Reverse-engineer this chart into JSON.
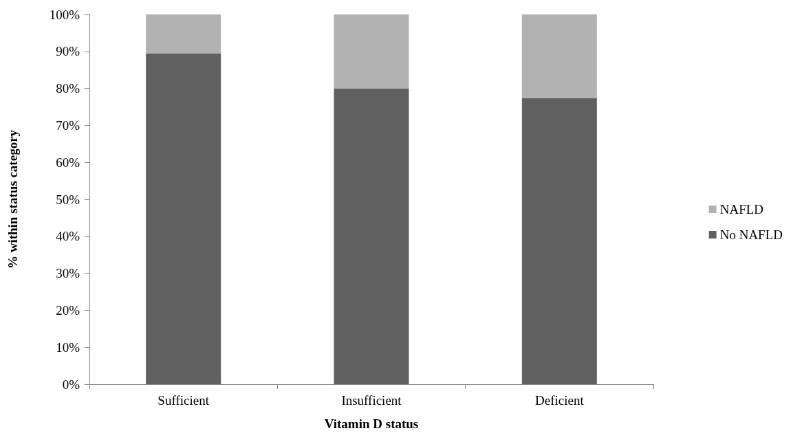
{
  "chart_data": {
    "type": "bar",
    "stacked": true,
    "xlabel": "Vitamin D status",
    "ylabel": "% within status category",
    "categories": [
      "Sufficient",
      "Insufficient",
      "Deficient"
    ],
    "series": [
      {
        "name": "No NAFLD",
        "color": "#606060",
        "values": [
          89.5,
          80,
          77.4
        ]
      },
      {
        "name": "NAFLD",
        "color": "#b2b2b2",
        "values": [
          10.5,
          20,
          22.6
        ]
      }
    ],
    "ylim": [
      0,
      100
    ],
    "yticks": [
      {
        "value": 0,
        "label": "0%"
      },
      {
        "value": 10,
        "label": "10%"
      },
      {
        "value": 20,
        "label": "20%"
      },
      {
        "value": 30,
        "label": "30%"
      },
      {
        "value": 40,
        "label": "40%"
      },
      {
        "value": 50,
        "label": "50%"
      },
      {
        "value": 60,
        "label": "60%"
      },
      {
        "value": 70,
        "label": "70%"
      },
      {
        "value": 80,
        "label": "80%"
      },
      {
        "value": 90,
        "label": "90%"
      },
      {
        "value": 100,
        "label": "100%"
      }
    ],
    "grid": false,
    "legend": "right"
  }
}
